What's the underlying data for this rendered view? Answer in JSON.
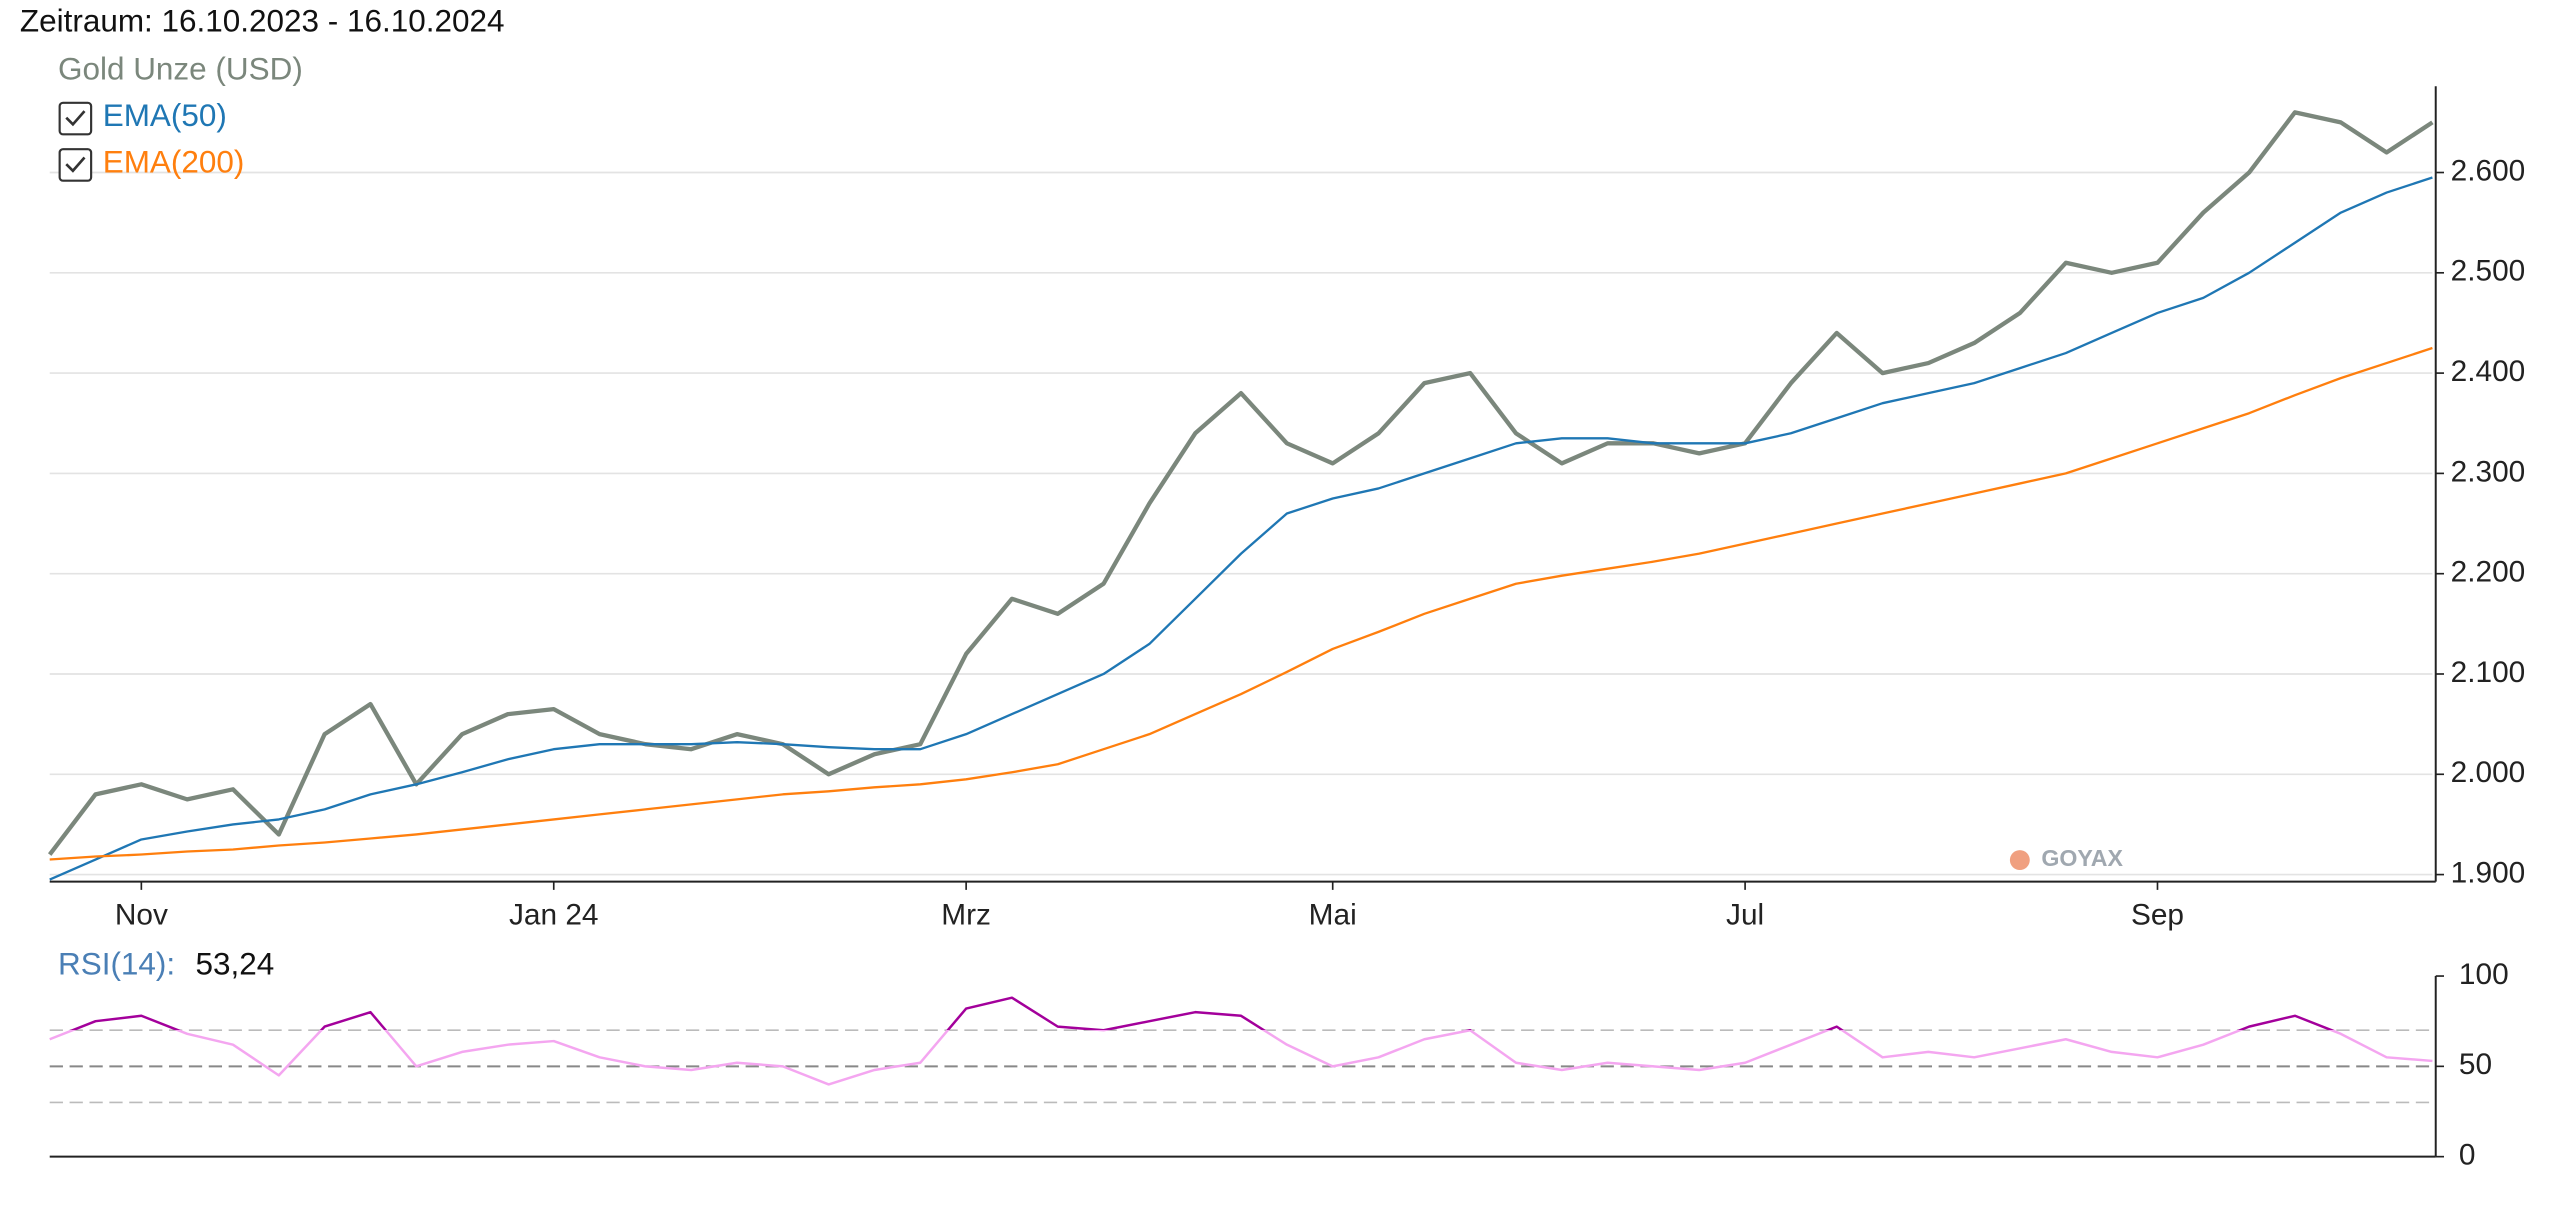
{
  "chart_data": [
    {
      "type": "line",
      "title": "Zeitraum: 16.10.2023 - 16.10.2024",
      "watermark": "GOYAX",
      "categories": [
        null,
        null,
        "Nov",
        null,
        null,
        null,
        null,
        null,
        null,
        null,
        null,
        "Jan 24",
        null,
        null,
        null,
        null,
        null,
        null,
        null,
        null,
        "Mrz",
        null,
        null,
        null,
        null,
        null,
        null,
        null,
        "Mai",
        null,
        null,
        null,
        null,
        null,
        null,
        null,
        null,
        "Jul",
        null,
        null,
        null,
        null,
        null,
        null,
        null,
        null,
        "Sep",
        null,
        null,
        null,
        null,
        null,
        null
      ],
      "ylim": [
        1893,
        2686
      ],
      "yticks": [
        {
          "value": 1900,
          "label": "1.900"
        },
        {
          "value": 2000,
          "label": "2.000"
        },
        {
          "value": 2100,
          "label": "2.100"
        },
        {
          "value": 2200,
          "label": "2.200"
        },
        {
          "value": 2300,
          "label": "2.300"
        },
        {
          "value": 2400,
          "label": "2.400"
        },
        {
          "value": 2500,
          "label": "2.500"
        },
        {
          "value": 2600,
          "label": "2.600"
        }
      ],
      "grid": true,
      "series": [
        {
          "name": "Gold Unze (USD)",
          "color": "#7b877c",
          "values": [
            1920,
            1980,
            1990,
            1975,
            1985,
            1940,
            2040,
            2070,
            1990,
            2040,
            2060,
            2065,
            2040,
            2030,
            2025,
            2040,
            2030,
            2000,
            2020,
            2030,
            2120,
            2175,
            2160,
            2190,
            2270,
            2340,
            2380,
            2330,
            2310,
            2340,
            2390,
            2400,
            2340,
            2310,
            2330,
            2330,
            2320,
            2330,
            2390,
            2440,
            2400,
            2410,
            2430,
            2460,
            2510,
            2500,
            2510,
            2560,
            2600,
            2660,
            2650,
            2620,
            2650
          ]
        },
        {
          "name": "EMA(50)",
          "color": "#1f77b4",
          "values": [
            1895,
            1915,
            1935,
            1943,
            1950,
            1955,
            1965,
            1980,
            1990,
            2002,
            2015,
            2025,
            2030,
            2030,
            2030,
            2032,
            2030,
            2027,
            2025,
            2025,
            2040,
            2060,
            2080,
            2100,
            2130,
            2175,
            2220,
            2260,
            2275,
            2285,
            2300,
            2315,
            2330,
            2335,
            2335,
            2330,
            2330,
            2330,
            2340,
            2355,
            2370,
            2380,
            2390,
            2405,
            2420,
            2440,
            2460,
            2475,
            2500,
            2530,
            2560,
            2580,
            2595
          ]
        },
        {
          "name": "EMA(200)",
          "color": "#ff7f0e",
          "values": [
            1915,
            1918,
            1920,
            1923,
            1925,
            1929,
            1932,
            1936,
            1940,
            1945,
            1950,
            1955,
            1960,
            1965,
            1970,
            1975,
            1980,
            1983,
            1987,
            1990,
            1995,
            2002,
            2010,
            2025,
            2040,
            2060,
            2080,
            2102,
            2125,
            2142,
            2160,
            2175,
            2190,
            2198,
            2205,
            2212,
            2220,
            2230,
            2240,
            2250,
            2260,
            2270,
            2280,
            2290,
            2300,
            2315,
            2330,
            2345,
            2360,
            2378,
            2395,
            2410,
            2425
          ]
        }
      ]
    },
    {
      "type": "line",
      "title": "RSI(14):",
      "current": {
        "value": 53.24,
        "label": "53,24"
      },
      "ylim": [
        0,
        100
      ],
      "yticks": [
        0,
        50,
        100
      ],
      "levels": [
        30,
        70
      ],
      "series": [
        {
          "color": "#f4a6f0",
          "color_above": "#a3009b",
          "values": [
            65,
            75,
            78,
            68,
            62,
            45,
            72,
            80,
            50,
            58,
            62,
            64,
            55,
            50,
            48,
            52,
            50,
            40,
            48,
            52,
            82,
            88,
            72,
            70,
            75,
            80,
            78,
            62,
            50,
            55,
            65,
            70,
            52,
            48,
            52,
            50,
            48,
            52,
            62,
            72,
            55,
            58,
            55,
            60,
            65,
            58,
            55,
            62,
            72,
            78,
            68,
            55,
            53
          ]
        }
      ]
    }
  ]
}
